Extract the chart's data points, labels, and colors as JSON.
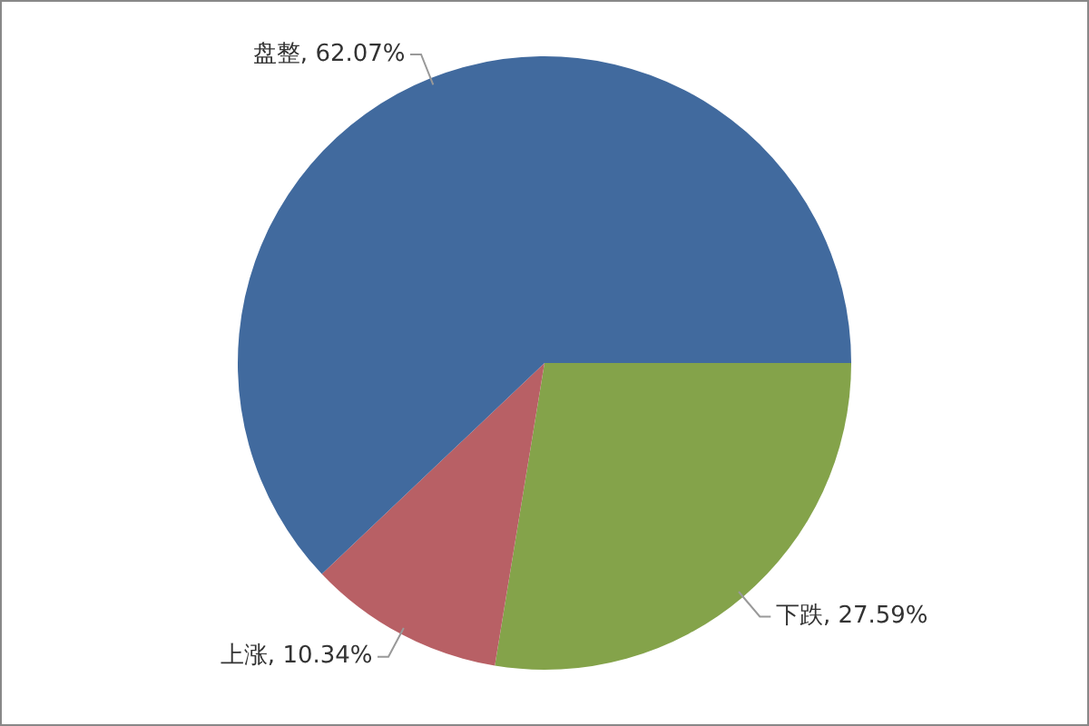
{
  "chart_data": {
    "type": "pie",
    "categories": [
      "下跌",
      "上涨",
      "盘整"
    ],
    "values": [
      27.59,
      10.34,
      62.07
    ],
    "colors": [
      "#84a34a",
      "#b86065",
      "#416a9e"
    ],
    "value_labels": [
      ", 27.59%",
      ", 10.34%",
      ", 62.07%"
    ],
    "legend": false
  }
}
